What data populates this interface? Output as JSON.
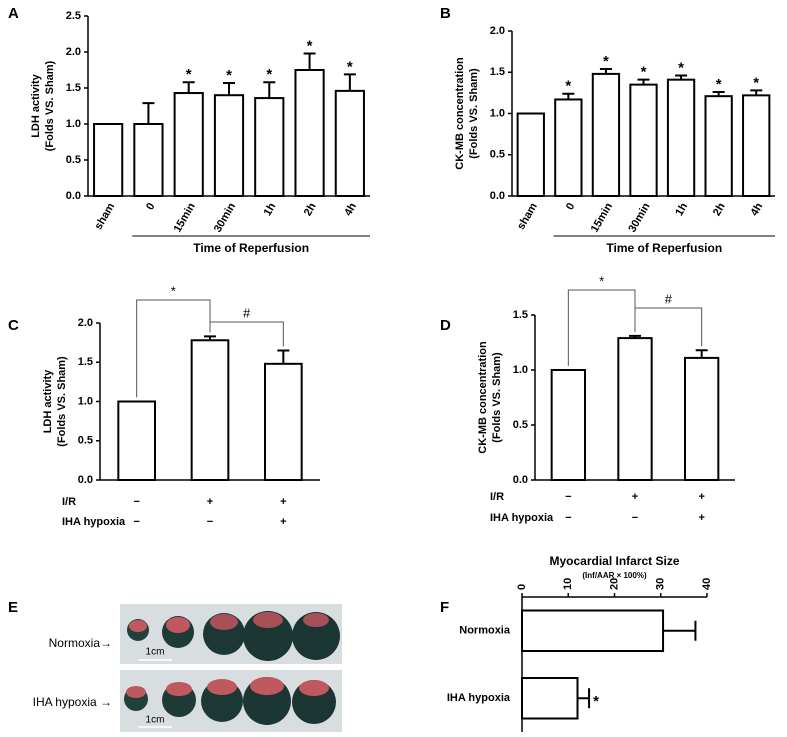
{
  "chart_data": [
    {
      "type": "bar",
      "panel": "A",
      "ylabel": [
        "LDH activity",
        "(Folds VS. Sham)"
      ],
      "categories": [
        "sham",
        "0",
        "15min",
        "30min",
        "1h",
        "2h",
        "4h"
      ],
      "values": [
        1.0,
        1.0,
        1.43,
        1.4,
        1.36,
        1.75,
        1.46
      ],
      "errors": [
        0,
        0.29,
        0.15,
        0.17,
        0.22,
        0.23,
        0.23
      ],
      "significance": [
        null,
        null,
        "*",
        "*",
        "*",
        "*",
        "*"
      ],
      "xlabel": "Time of Reperfusion",
      "color": "#ffffff",
      "ylim": [
        0,
        2.5
      ],
      "yticks": [
        {
          "value": 0,
          "label": "0.0"
        },
        {
          "value": 0.5,
          "label": "0.5"
        },
        {
          "value": 1,
          "label": "1.0"
        },
        {
          "value": 1.5,
          "label": "1.5"
        },
        {
          "value": 2,
          "label": "2.0"
        },
        {
          "value": 2.5,
          "label": "2.5"
        }
      ]
    },
    {
      "type": "bar",
      "panel": "B",
      "ylabel": [
        "CK-MB concentration",
        "(Folds VS. Sham)"
      ],
      "categories": [
        "sham",
        "0",
        "15min",
        "30min",
        "1h",
        "2h",
        "4h"
      ],
      "values": [
        1.0,
        1.17,
        1.48,
        1.35,
        1.41,
        1.21,
        1.22
      ],
      "errors": [
        0,
        0.07,
        0.06,
        0.06,
        0.05,
        0.05,
        0.06
      ],
      "significance": [
        null,
        "*",
        "*",
        "*",
        "*",
        "*",
        "*"
      ],
      "xlabel": "Time of Reperfusion",
      "color": "#ffffff",
      "ylim": [
        0,
        2
      ],
      "yticks": [
        {
          "value": 0,
          "label": "0.0"
        },
        {
          "value": 0.5,
          "label": "0.5"
        },
        {
          "value": 1,
          "label": "1.0"
        },
        {
          "value": 1.5,
          "label": "1.5"
        },
        {
          "value": 2,
          "label": "2.0"
        }
      ]
    },
    {
      "type": "bar",
      "panel": "C",
      "ylabel": [
        "LDH activity",
        "(Folds VS. Sham)"
      ],
      "categories": [
        null,
        null,
        null
      ],
      "conditions": [
        {
          "name": "I/R",
          "signs": [
            "−",
            "+",
            "+"
          ]
        },
        {
          "name": "IHA hypoxia",
          "signs": [
            "−",
            "−",
            "+"
          ]
        }
      ],
      "values": [
        1.0,
        1.78,
        1.48
      ],
      "errors": [
        0,
        0.05,
        0.17
      ],
      "comparisons": [
        "*",
        "#"
      ],
      "color": "#ffffff",
      "ylim": [
        0,
        2
      ],
      "yticks": [
        {
          "value": 0,
          "label": "0.0"
        },
        {
          "value": 0.5,
          "label": "0.5"
        },
        {
          "value": 1,
          "label": "1.0"
        },
        {
          "value": 1.5,
          "label": "1.5"
        },
        {
          "value": 2,
          "label": "2.0"
        }
      ]
    },
    {
      "type": "bar",
      "panel": "D",
      "ylabel": [
        "CK-MB concentration",
        "(Folds VS. Sham)"
      ],
      "categories": [
        null,
        null,
        null
      ],
      "conditions": [
        {
          "name": "I/R",
          "signs": [
            "−",
            "+",
            "+"
          ]
        },
        {
          "name": "IHA hypoxia",
          "signs": [
            "−",
            "−",
            "+"
          ]
        }
      ],
      "values": [
        1.0,
        1.29,
        1.11
      ],
      "errors": [
        0,
        0.02,
        0.07
      ],
      "comparisons": [
        "*",
        "#"
      ],
      "color": "#ffffff",
      "ylim": [
        0,
        1.5
      ],
      "yticks": [
        {
          "value": 0,
          "label": "0.0"
        },
        {
          "value": 0.5,
          "label": "0.5"
        },
        {
          "value": 1,
          "label": "1.0"
        },
        {
          "value": 1.5,
          "label": "1.5"
        }
      ]
    },
    {
      "type": "barh",
      "panel": "F",
      "title": "Myocardial Infarct Size",
      "subtitle": "(Inf/AAR × 100%)",
      "categories": [
        "Normoxia",
        "IHA hypoxia"
      ],
      "values": [
        30.5,
        12
      ],
      "errors": [
        7,
        2.5
      ],
      "significance": [
        null,
        "*"
      ],
      "color": "#ffffff",
      "xlim": [
        0,
        40
      ],
      "xticks": [
        0,
        10,
        20,
        30,
        40
      ]
    }
  ],
  "photo": {
    "panel": "E",
    "rows": [
      "Normoxia→",
      "IHA hypoxia →"
    ],
    "scale": [
      "1cm",
      "1cm"
    ]
  }
}
